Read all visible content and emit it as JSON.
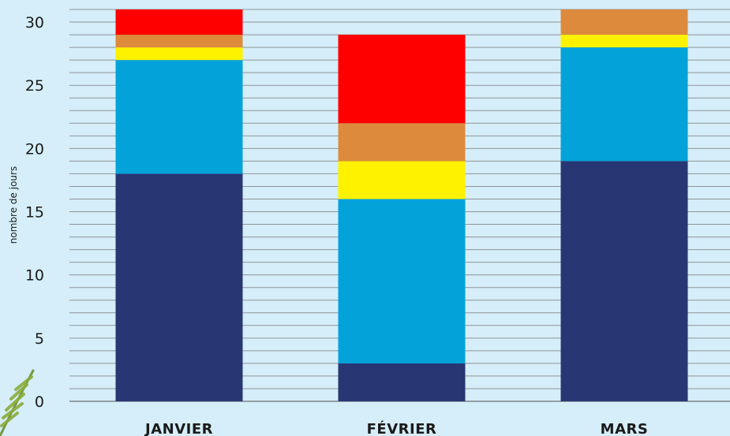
{
  "chart_data": {
    "type": "bar",
    "stacked": true,
    "ylabel": "nombre de jours",
    "ylim": [
      0,
      30
    ],
    "yticks": [
      0,
      5,
      10,
      15,
      20,
      25,
      30
    ],
    "grid": true,
    "categories": [
      "JANVIER",
      "FÉVRIER",
      "MARS"
    ],
    "series": [
      {
        "color": "#283673",
        "values": [
          18,
          3,
          19
        ]
      },
      {
        "color": "#03a3da",
        "values": [
          9,
          13,
          9
        ]
      },
      {
        "color": "#fef200",
        "values": [
          1,
          3,
          1
        ]
      },
      {
        "color": "#de8a3d",
        "values": [
          1,
          3,
          2
        ]
      },
      {
        "color": "#fe0000",
        "values": [
          2,
          7,
          0
        ]
      }
    ]
  }
}
